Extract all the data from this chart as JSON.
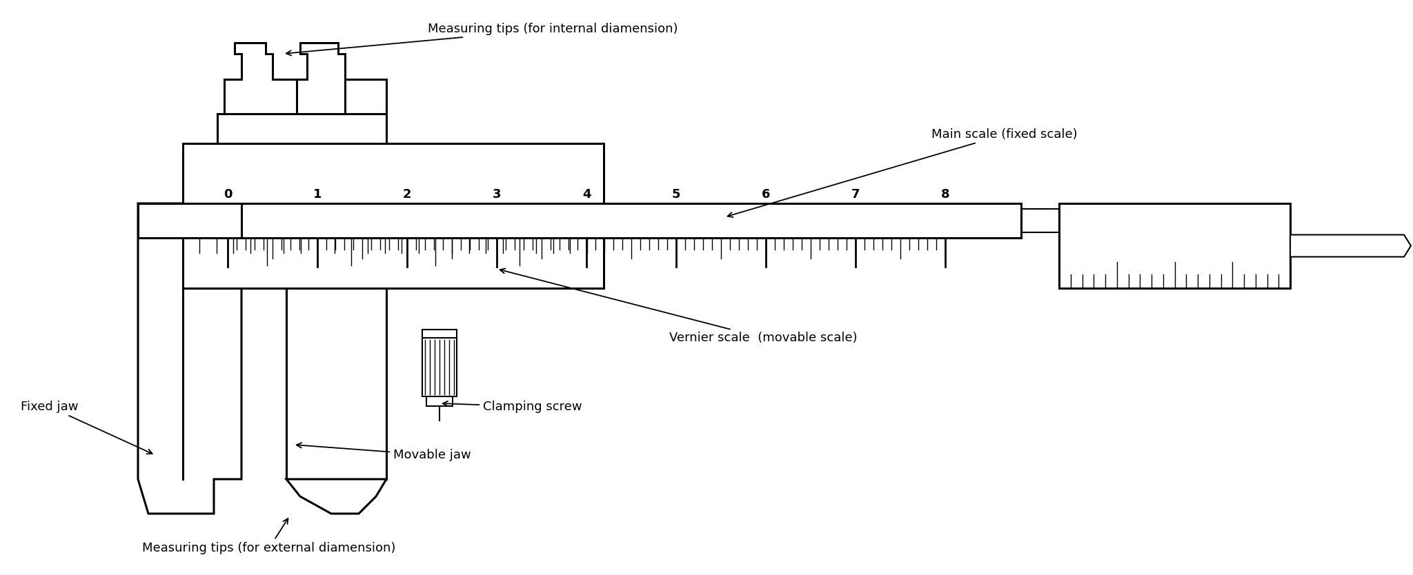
{
  "bg_color": "#ffffff",
  "line_color": "#000000",
  "labels": {
    "measuring_tips_internal": "Measuring tips (for internal diamension)",
    "main_scale": "Main scale (fixed scale)",
    "vernier_scale": "Vernier scale  (movable scale)",
    "clamping_screw": "Clamping screw",
    "fixed_jaw": "Fixed jaw",
    "movable_jaw": "Movable jaw",
    "measuring_tips_external": "Measuring tips (for external diamension)"
  },
  "main_scale_numbers": [
    "0",
    "1",
    "2",
    "3",
    "4",
    "5",
    "6",
    "7",
    "8"
  ],
  "fontsize_labels": 13,
  "fontsize_scale": 13
}
